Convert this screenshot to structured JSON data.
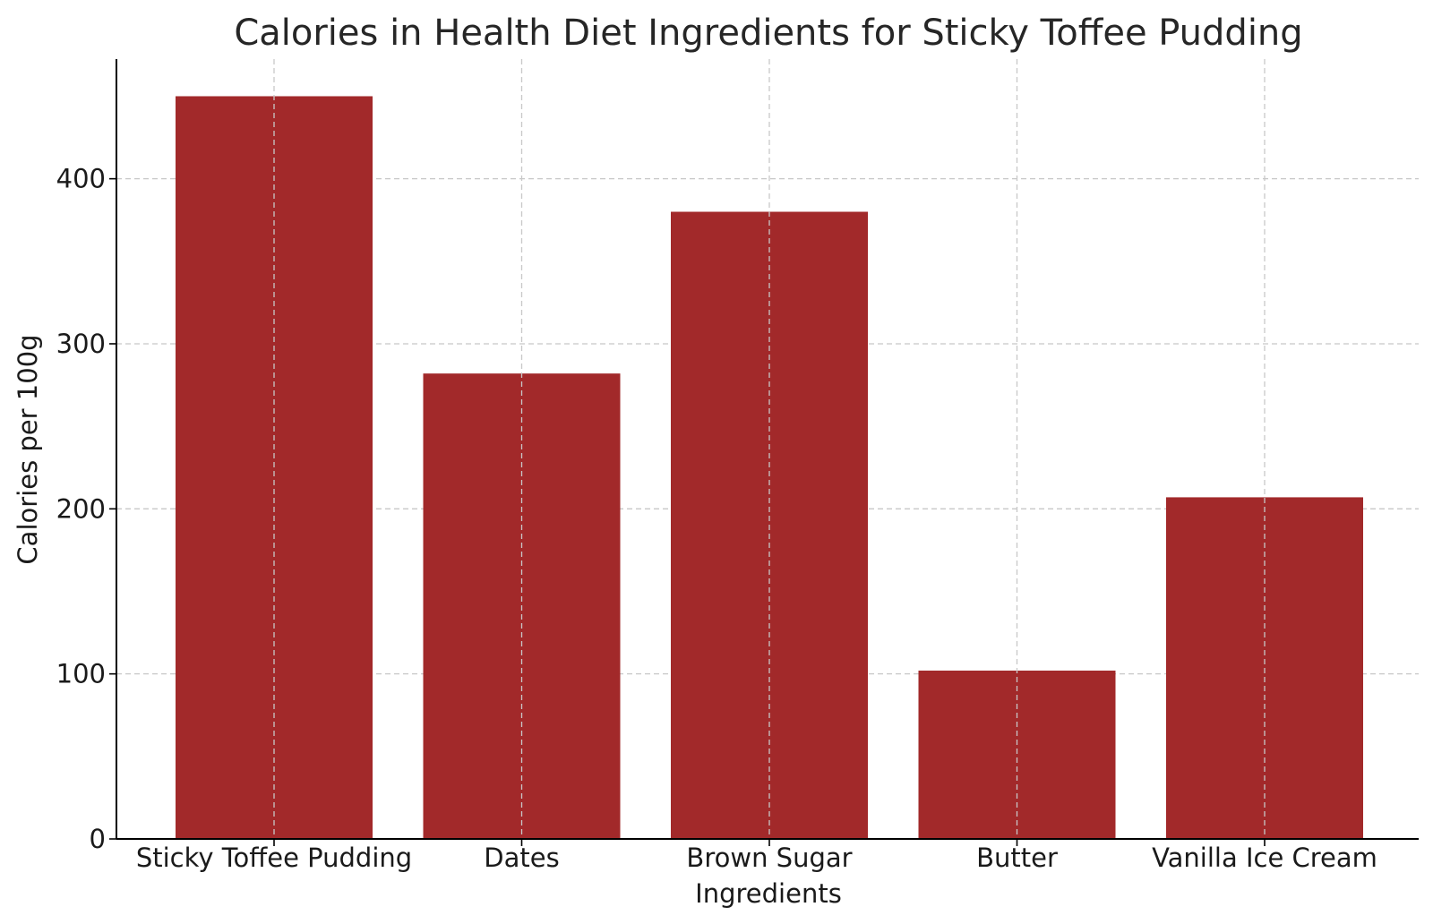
{
  "chart_data": {
    "type": "bar",
    "title": "Calories in Health Diet Ingredients for Sticky Toffee Pudding",
    "xlabel": "Ingredients",
    "ylabel": "Calories per 100g",
    "categories": [
      "Sticky Toffee Pudding",
      "Dates",
      "Brown Sugar",
      "Butter",
      "Vanilla Ice Cream"
    ],
    "values": [
      450,
      282,
      380,
      102,
      207
    ],
    "ylim": [
      0,
      472.5
    ],
    "yticks": [
      0,
      100,
      200,
      300,
      400
    ],
    "ytick_labels": [
      "0",
      "100",
      "200",
      "300",
      "400"
    ],
    "grid": true,
    "bar_color": "#a2292a"
  }
}
